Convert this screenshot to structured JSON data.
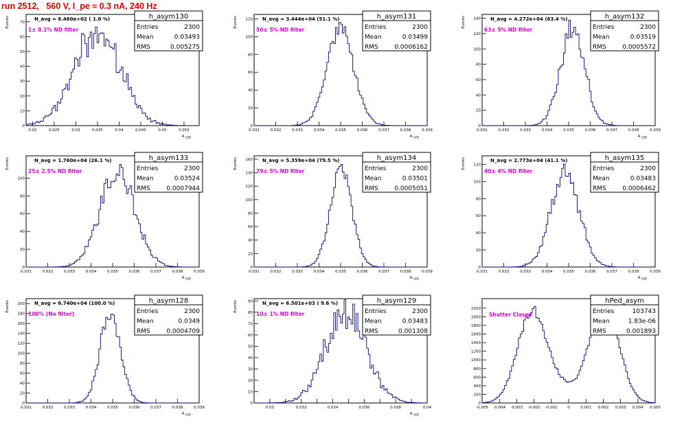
{
  "header": {
    "run_title": "run 2512,   560 V, I_pe ≈ 0.3 nA, 240 Hz"
  },
  "colors": {
    "histogram_line": "#00007f",
    "filter_label": "#e000e0",
    "run_title": "#e00000",
    "frame": "#000000"
  },
  "stats_labels": {
    "entries": "Entries",
    "mean": "Mean",
    "rms": "RMS"
  },
  "chart_data": [
    {
      "type": "histogram",
      "name": "h_asym130",
      "nav": "N_avg = 6.460e+02 ( 1.0 %)",
      "filter": "1± 0.1% ND filter",
      "entries": "2300",
      "mean": "0.03493",
      "rms": "0.005275",
      "xlabel": "A_LED",
      "ylabel": "Events",
      "xlim": [
        0.0185,
        0.0585
      ],
      "ylim": [
        0,
        75
      ],
      "xticks": [
        0.02,
        0.025,
        0.03,
        0.035,
        0.04,
        0.045,
        0.05,
        0.055
      ],
      "xtick_labels": [
        "0.02",
        "0.025",
        "0.03",
        "0.035",
        "0.04",
        "0.045",
        "0.05",
        "0.055"
      ],
      "yticks": [
        0,
        10,
        20,
        30,
        40,
        50,
        60,
        70
      ],
      "mu": 0.0349,
      "sigma": 0.0053,
      "noise": 0.22,
      "seed": 130,
      "nbins": 100
    },
    {
      "type": "histogram",
      "name": "h_asym131",
      "nav": "N_avg = 3.444e+04 (51.1 %)",
      "filter": "50± 5% ND filter",
      "entries": "2300",
      "mean": "0.03499",
      "rms": "0.0006162",
      "xlabel": "A_LED",
      "ylabel": "Events",
      "xlim": [
        0.031,
        0.039
      ],
      "ylim": [
        0,
        125
      ],
      "xticks": [
        0.031,
        0.032,
        0.033,
        0.034,
        0.035,
        0.036,
        0.037,
        0.038,
        0.039
      ],
      "xtick_labels": [
        "0.031",
        "0.032",
        "0.033",
        "0.034",
        "0.035",
        "0.036",
        "0.037",
        "0.038",
        "0.039"
      ],
      "yticks": [
        0,
        20,
        40,
        60,
        80,
        100,
        120
      ],
      "mu": 0.03499,
      "sigma": 0.00062,
      "noise": 0.1,
      "seed": 131,
      "nbins": 100
    },
    {
      "type": "histogram",
      "name": "h_asym132",
      "nav": "N_avg = 4.272e+04 (63.4 %)",
      "filter": "63± 5% ND filter",
      "entries": "2300",
      "mean": "0.03519",
      "rms": "0.0005572",
      "xlabel": "A_LED",
      "ylabel": "Events",
      "xlim": [
        0.031,
        0.039
      ],
      "ylim": [
        0,
        145
      ],
      "xticks": [
        0.031,
        0.032,
        0.033,
        0.034,
        0.035,
        0.036,
        0.037,
        0.038,
        0.039
      ],
      "xtick_labels": [
        "0.031",
        "0.032",
        "0.033",
        "0.034",
        "0.035",
        "0.036",
        "0.037",
        "0.038",
        "0.039"
      ],
      "yticks": [
        0,
        20,
        40,
        60,
        80,
        100,
        120,
        140
      ],
      "mu": 0.03519,
      "sigma": 0.00056,
      "noise": 0.1,
      "seed": 132,
      "nbins": 100
    },
    {
      "type": "histogram",
      "name": "h_asym133",
      "nav": "N_avg = 1.760e+04 (26.1 %)",
      "filter": "25± 2.5% ND filter",
      "entries": "2300",
      "mean": "0.03524",
      "rms": "0.0007944",
      "xlabel": "A_LED",
      "ylabel": "Events",
      "xlim": [
        0.031,
        0.039
      ],
      "ylim": [
        0,
        125
      ],
      "xticks": [
        0.031,
        0.032,
        0.033,
        0.034,
        0.035,
        0.036,
        0.037,
        0.038,
        0.039
      ],
      "xtick_labels": [
        "0.031",
        "0.032",
        "0.033",
        "0.034",
        "0.035",
        "0.036",
        "0.037",
        "0.038",
        "0.039"
      ],
      "yticks": [
        0,
        20,
        40,
        60,
        80,
        100
      ],
      "mu": 0.03524,
      "sigma": 0.00079,
      "noise": 0.14,
      "seed": 133,
      "nbins": 100
    },
    {
      "type": "histogram",
      "name": "h_asym134",
      "nav": "N_avg = 5.359e+04 (79.5 %)",
      "filter": "79± 5% ND filter",
      "entries": "2300",
      "mean": "0.03501",
      "rms": "0.0005051",
      "xlabel": "A_LED",
      "ylabel": "Events",
      "xlim": [
        0.031,
        0.039
      ],
      "ylim": [
        0,
        165
      ],
      "xticks": [
        0.031,
        0.032,
        0.033,
        0.034,
        0.035,
        0.036,
        0.037,
        0.038,
        0.039
      ],
      "xtick_labels": [
        "0.031",
        "0.032",
        "0.033",
        "0.034",
        "0.035",
        "0.036",
        "0.037",
        "0.038",
        "0.039"
      ],
      "yticks": [
        0,
        20,
        40,
        60,
        80,
        100,
        120,
        140,
        160
      ],
      "mu": 0.03501,
      "sigma": 0.0005,
      "noise": 0.1,
      "seed": 134,
      "nbins": 100
    },
    {
      "type": "histogram",
      "name": "h_asym135",
      "nav": "N_avg = 2.773e+04 (41.1 %)",
      "filter": "40± 4% ND filter",
      "entries": "2300",
      "mean": "0.03483",
      "rms": "0.0006462",
      "xlabel": "A_LED",
      "ylabel": "Events",
      "xlim": [
        0.031,
        0.039
      ],
      "ylim": [
        0,
        130
      ],
      "xticks": [
        0.031,
        0.032,
        0.033,
        0.034,
        0.035,
        0.036,
        0.037,
        0.038,
        0.039
      ],
      "xtick_labels": [
        "0.031",
        "0.032",
        "0.033",
        "0.034",
        "0.035",
        "0.036",
        "0.037",
        "0.038",
        "0.039"
      ],
      "yticks": [
        0,
        20,
        40,
        60,
        80,
        100,
        120
      ],
      "mu": 0.03483,
      "sigma": 0.00065,
      "noise": 0.12,
      "seed": 135,
      "nbins": 100
    },
    {
      "type": "histogram",
      "name": "h_asym128",
      "nav": "N_avg = 6.740e+04 (100.0 %)",
      "filter": "100% (No filter)",
      "entries": "2300",
      "mean": "0.0349",
      "rms": "0.0004709",
      "xlabel": "A_LED",
      "ylabel": "Events",
      "xlim": [
        0.031,
        0.039
      ],
      "ylim": [
        0,
        210
      ],
      "xticks": [
        0.031,
        0.032,
        0.033,
        0.034,
        0.035,
        0.036,
        0.037,
        0.038,
        0.039
      ],
      "xtick_labels": [
        "0.031",
        "0.032",
        "0.033",
        "0.034",
        "0.035",
        "0.036",
        "0.037",
        "0.038",
        "0.039"
      ],
      "yticks": [
        0,
        20,
        40,
        60,
        80,
        100,
        120,
        140,
        160,
        180,
        200
      ],
      "mu": 0.0349,
      "sigma": 0.00047,
      "noise": 0.1,
      "seed": 128,
      "nbins": 100
    },
    {
      "type": "histogram",
      "name": "h_asym129",
      "nav": "N_avg = 6.501e+03 ( 9.6 %)",
      "filter": "10± 1% ND filter",
      "entries": "2300",
      "mean": "0.03483",
      "rms": "0.001308",
      "xlabel": "A_LED",
      "ylabel": "Events",
      "xlim": [
        0.029,
        0.04
      ],
      "ylim": [
        0,
        92
      ],
      "xticks": [
        0.03,
        0.031,
        0.032,
        0.033,
        0.034,
        0.035,
        0.036,
        0.037,
        0.038,
        0.039,
        0.04
      ],
      "xtick_labels": [
        "0.03",
        "",
        "0.032",
        "",
        "0.034",
        "",
        "0.036",
        "",
        "0.038",
        "",
        "0.04"
      ],
      "yticks": [
        0,
        10,
        20,
        30,
        40,
        50,
        60,
        70,
        80,
        90
      ],
      "mu": 0.03483,
      "sigma": 0.0013,
      "noise": 0.2,
      "seed": 129,
      "nbins": 100
    },
    {
      "type": "histogram",
      "name": "hPed_asym",
      "nav": "",
      "filter": "Shutter Closed",
      "entries": "103743",
      "mean": "1.83e-06",
      "rms": "0.001893",
      "xlabel": "",
      "ylabel": "",
      "xlim": [
        -0.005,
        0.005
      ],
      "ylim": [
        0,
        2420
      ],
      "xticks": [
        -0.005,
        -0.004,
        -0.003,
        -0.002,
        -0.001,
        0,
        0.001,
        0.002,
        0.003,
        0.004,
        0.005
      ],
      "xtick_labels": [
        "-0.005",
        "-0.004",
        "-0.003",
        "-0.002",
        "-0.001",
        "0",
        "0.001",
        "0.002",
        "0.003",
        "0.004",
        "0.005"
      ],
      "yticks": [
        0,
        200,
        400,
        600,
        800,
        1000,
        1200,
        1400,
        1600,
        1800,
        2000,
        2200
      ],
      "shape": "bimodal",
      "noise": 0.05,
      "seed": 99,
      "nbins": 100
    }
  ]
}
